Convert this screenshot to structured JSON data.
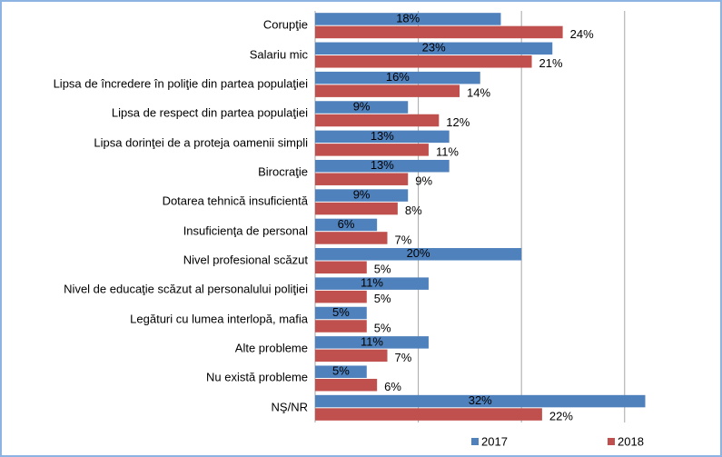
{
  "chart_data": {
    "type": "barh",
    "categories": [
      "Corupţie",
      "Salariu mic",
      "Lipsa de încredere în poliţie din partea populaţiei",
      "Lipsa de respect din partea populaţiei",
      "Lipsa dorinţei de a proteja oamenii simpli",
      "Birocraţie",
      "Dotarea tehnică insuficientă",
      "Insuficienţa de personal",
      "Nivel profesional scăzut",
      "Nivel de educaţie scăzut al personalului poliţiei",
      "Legături cu lumea interlopă, mafia",
      "Alte probleme",
      "Nu există probleme",
      "NŞ/NR"
    ],
    "series": [
      {
        "name": "2017",
        "color": "#4f81bd",
        "values": [
          18,
          23,
          16,
          9,
          13,
          13,
          9,
          6,
          20,
          11,
          5,
          11,
          5,
          32
        ],
        "value_labels": [
          "18%",
          "23%",
          "16%",
          "9%",
          "13%",
          "13%",
          "9%",
          "6%",
          "20%",
          "11%",
          "5%",
          "11%",
          "5%",
          "32%"
        ]
      },
      {
        "name": "2018",
        "color": "#c0504d",
        "values": [
          24,
          21,
          14,
          12,
          11,
          9,
          8,
          7,
          5,
          5,
          5,
          7,
          6,
          22
        ],
        "value_labels": [
          "24%",
          "21%",
          "14%",
          "12%",
          "11%",
          "9%",
          "8%",
          "7%",
          "5%",
          "5%",
          "5%",
          "7%",
          "6%",
          "22%"
        ]
      }
    ],
    "xlim": [
      0,
      39
    ],
    "xticks": [
      0,
      10,
      20,
      30
    ],
    "grid": true,
    "legend": "bottom-right"
  }
}
